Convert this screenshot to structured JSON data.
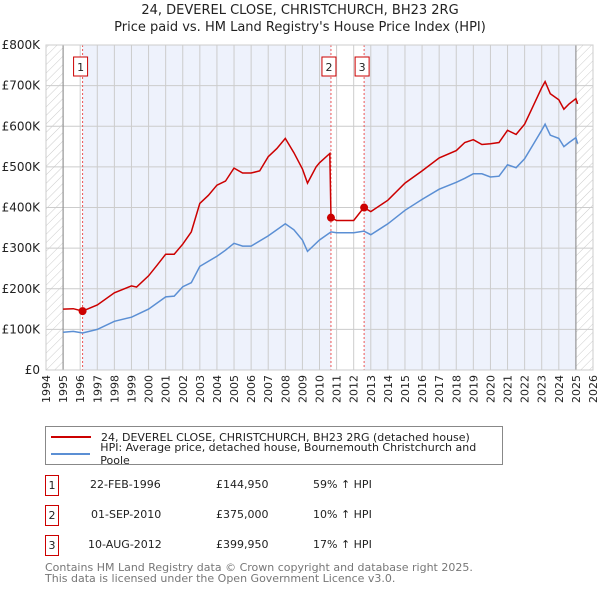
{
  "chart_data": {
    "type": "line",
    "title": "24, DEVEREL CLOSE, CHRISTCHURCH, BH23 2RG",
    "subtitle": "Price paid vs. HM Land Registry's House Price Index (HPI)",
    "xlim": [
      1994,
      2026
    ],
    "ylim": [
      0,
      800000
    ],
    "x_ticks": [
      "1994",
      "1995",
      "1996",
      "1997",
      "1998",
      "1999",
      "2000",
      "2001",
      "2002",
      "2003",
      "2004",
      "2005",
      "2006",
      "2007",
      "2008",
      "2009",
      "2010",
      "2011",
      "2012",
      "2013",
      "2014",
      "2015",
      "2016",
      "2017",
      "2018",
      "2019",
      "2020",
      "2021",
      "2022",
      "2023",
      "2024",
      "2025",
      "2026"
    ],
    "y_ticks": [
      {
        "v": 0,
        "label": "£0"
      },
      {
        "v": 100000,
        "label": "£100K"
      },
      {
        "v": 200000,
        "label": "£200K"
      },
      {
        "v": 300000,
        "label": "£300K"
      },
      {
        "v": 400000,
        "label": "£400K"
      },
      {
        "v": 500000,
        "label": "£500K"
      },
      {
        "v": 600000,
        "label": "£600K"
      },
      {
        "v": 700000,
        "label": "£700K"
      },
      {
        "v": 800000,
        "label": "£800K"
      }
    ],
    "grid": true,
    "series": [
      {
        "name": "24, DEVEREL CLOSE, CHRISTCHURCH, BH23 2RG (detached house)",
        "color": "#cc0000",
        "x": [
          1995,
          1995.6,
          1996.14,
          1997,
          1998,
          1999,
          1999.3,
          2000,
          2000.5,
          2001,
          2001.5,
          2002,
          2002.5,
          2003,
          2003.5,
          2004,
          2004.5,
          2005,
          2005.5,
          2006,
          2006.5,
          2007,
          2007.5,
          2008,
          2008.5,
          2009,
          2009.3,
          2009.8,
          2010,
          2010.6,
          2010.67,
          2011,
          2012,
          2012.6,
          2013,
          2014,
          2015,
          2016,
          2017,
          2018,
          2018.5,
          2019,
          2019.5,
          2020,
          2020.5,
          2021,
          2021.5,
          2022,
          2022.5,
          2023,
          2023.2,
          2023.5,
          2024,
          2024.3,
          2024.6,
          2025,
          2025.1
        ],
        "y": [
          150000,
          151000,
          145000,
          160000,
          190000,
          207000,
          204000,
          232000,
          258000,
          285000,
          285000,
          310000,
          340000,
          410000,
          430000,
          455000,
          465000,
          497000,
          485000,
          485000,
          490000,
          525000,
          545000,
          570000,
          535000,
          495000,
          460000,
          500000,
          510000,
          533000,
          375000,
          368000,
          368000,
          400000,
          390000,
          418000,
          460000,
          490000,
          522000,
          540000,
          560000,
          567000,
          555000,
          557000,
          560000,
          590000,
          580000,
          605000,
          650000,
          695000,
          710000,
          680000,
          665000,
          642000,
          655000,
          668000,
          655000
        ]
      },
      {
        "name": "HPI: Average price, detached house, Bournemouth Christchurch and Poole",
        "color": "#5b8fd4",
        "x": [
          1995,
          1995.6,
          1996.14,
          1997,
          1998,
          1999,
          2000,
          2001,
          2001.5,
          2002,
          2002.5,
          2003,
          2004,
          2004.5,
          2005,
          2005.5,
          2006,
          2007,
          2008,
          2008.5,
          2009,
          2009.3,
          2010,
          2010.67,
          2011,
          2012,
          2012.6,
          2013,
          2014,
          2015,
          2016,
          2017,
          2018,
          2018.5,
          2019,
          2019.5,
          2020,
          2020.5,
          2021,
          2021.5,
          2022,
          2022.5,
          2023,
          2023.2,
          2023.5,
          2024,
          2024.3,
          2024.6,
          2025,
          2025.1
        ],
        "y": [
          93000,
          95000,
          91000,
          100000,
          120000,
          130000,
          150000,
          180000,
          182000,
          205000,
          215000,
          255000,
          280000,
          295000,
          312000,
          305000,
          305000,
          330000,
          360000,
          345000,
          320000,
          292000,
          320000,
          340000,
          338000,
          338000,
          342000,
          333000,
          360000,
          393000,
          420000,
          445000,
          462000,
          472000,
          483000,
          483000,
          475000,
          477000,
          505000,
          498000,
          520000,
          555000,
          590000,
          605000,
          578000,
          570000,
          550000,
          560000,
          572000,
          557000
        ]
      }
    ],
    "sales": [
      {
        "num": "1",
        "x": 1996.14,
        "y": 144950,
        "date": "22-FEB-1996",
        "price": "£144,950",
        "hpi": "59% ↑ HPI"
      },
      {
        "num": "2",
        "x": 2010.67,
        "y": 375000,
        "date": "01-SEP-2010",
        "price": "£375,000",
        "hpi": "10% ↑ HPI"
      },
      {
        "num": "3",
        "x": 2012.61,
        "y": 399950,
        "date": "10-AUG-2012",
        "price": "£399,950",
        "hpi": "17% ↑ HPI"
      }
    ],
    "legend_position": "below"
  },
  "footer": {
    "line1": "Contains HM Land Registry data © Crown copyright and database right 2025.",
    "line2": "This data is licensed under the Open Government Licence v3.0."
  }
}
